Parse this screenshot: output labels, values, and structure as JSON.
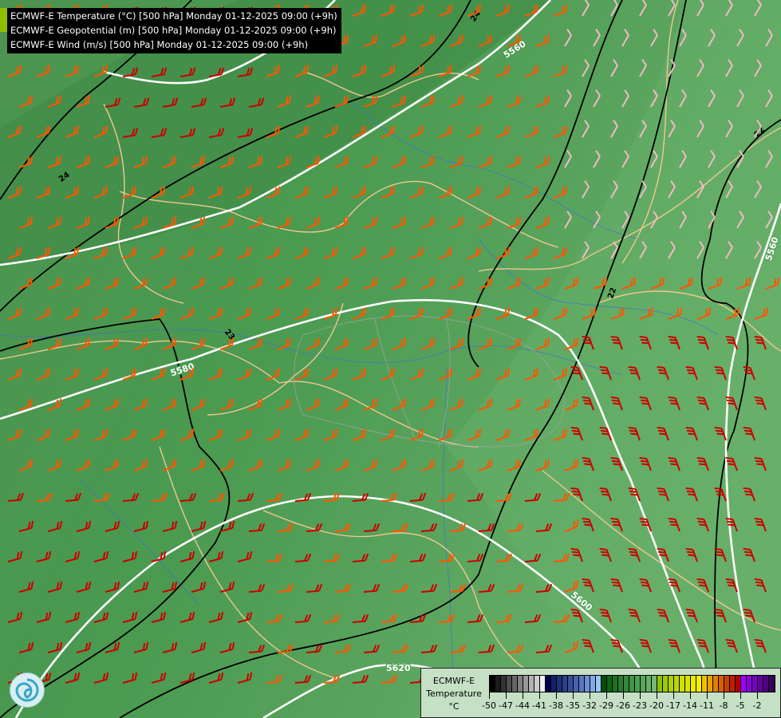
{
  "header": {
    "lines": [
      "ECMWF-E Temperature (°C) [500 hPa] Monday 01-12-2025 09:00 (+9h)",
      "ECMWF-E Geopotential (m) [500 hPa] Monday 01-12-2025 09:00 (+9h)",
      "ECMWF-E Wind (m/s) [500 hPa] Monday 01-12-2025 09:00 (+9h)"
    ]
  },
  "map": {
    "geopotential_labels": [
      "5560",
      "5560",
      "5580",
      "5600",
      "5620"
    ],
    "temperature_labels": [
      "24",
      "24",
      "23",
      "22",
      "22"
    ],
    "colors": {
      "background": "#4f9a55",
      "geopotential": "#ffffff",
      "temperature": "#000000",
      "borders": "#f0c890",
      "rivers": "#3a6fd8",
      "wind_strong": "#cc0000",
      "wind_mid": "#ff5500",
      "wind_weak": "#f4b8c8"
    }
  },
  "legend": {
    "title_line1": "ECMWF-E",
    "title_line2": "Temperature",
    "unit": "°C",
    "ticks": [
      "-50",
      "-47",
      "-44",
      "-41",
      "-38",
      "-35",
      "-32",
      "-29",
      "-26",
      "-23",
      "-20",
      "-17",
      "-14",
      "-11",
      "-8",
      "-5",
      "-2"
    ],
    "colors": [
      "#000000",
      "#1a1a1a",
      "#333333",
      "#4d4d4d",
      "#666666",
      "#808080",
      "#999999",
      "#b3b3b3",
      "#cccccc",
      "#eeeeee",
      "#000050",
      "#14206a",
      "#20307a",
      "#2c408a",
      "#38509a",
      "#4a62ae",
      "#5a78c2",
      "#6c90d6",
      "#80aae6",
      "#96c4f6",
      "#005000",
      "#106414",
      "#1c7020",
      "#287c2c",
      "#348838",
      "#409444",
      "#4ca050",
      "#58a85c",
      "#66b068",
      "#74b874",
      "#88c400",
      "#9ccc00",
      "#acd200",
      "#bcd800",
      "#ccde00",
      "#dce400",
      "#ecec00",
      "#f8f000",
      "#f0c000",
      "#e8a000",
      "#e08000",
      "#d86000",
      "#cc4000",
      "#c02000",
      "#b00000",
      "#a000ff",
      "#8c00e0",
      "#7800c0",
      "#6400a0",
      "#500080",
      "#3c0060"
    ]
  }
}
